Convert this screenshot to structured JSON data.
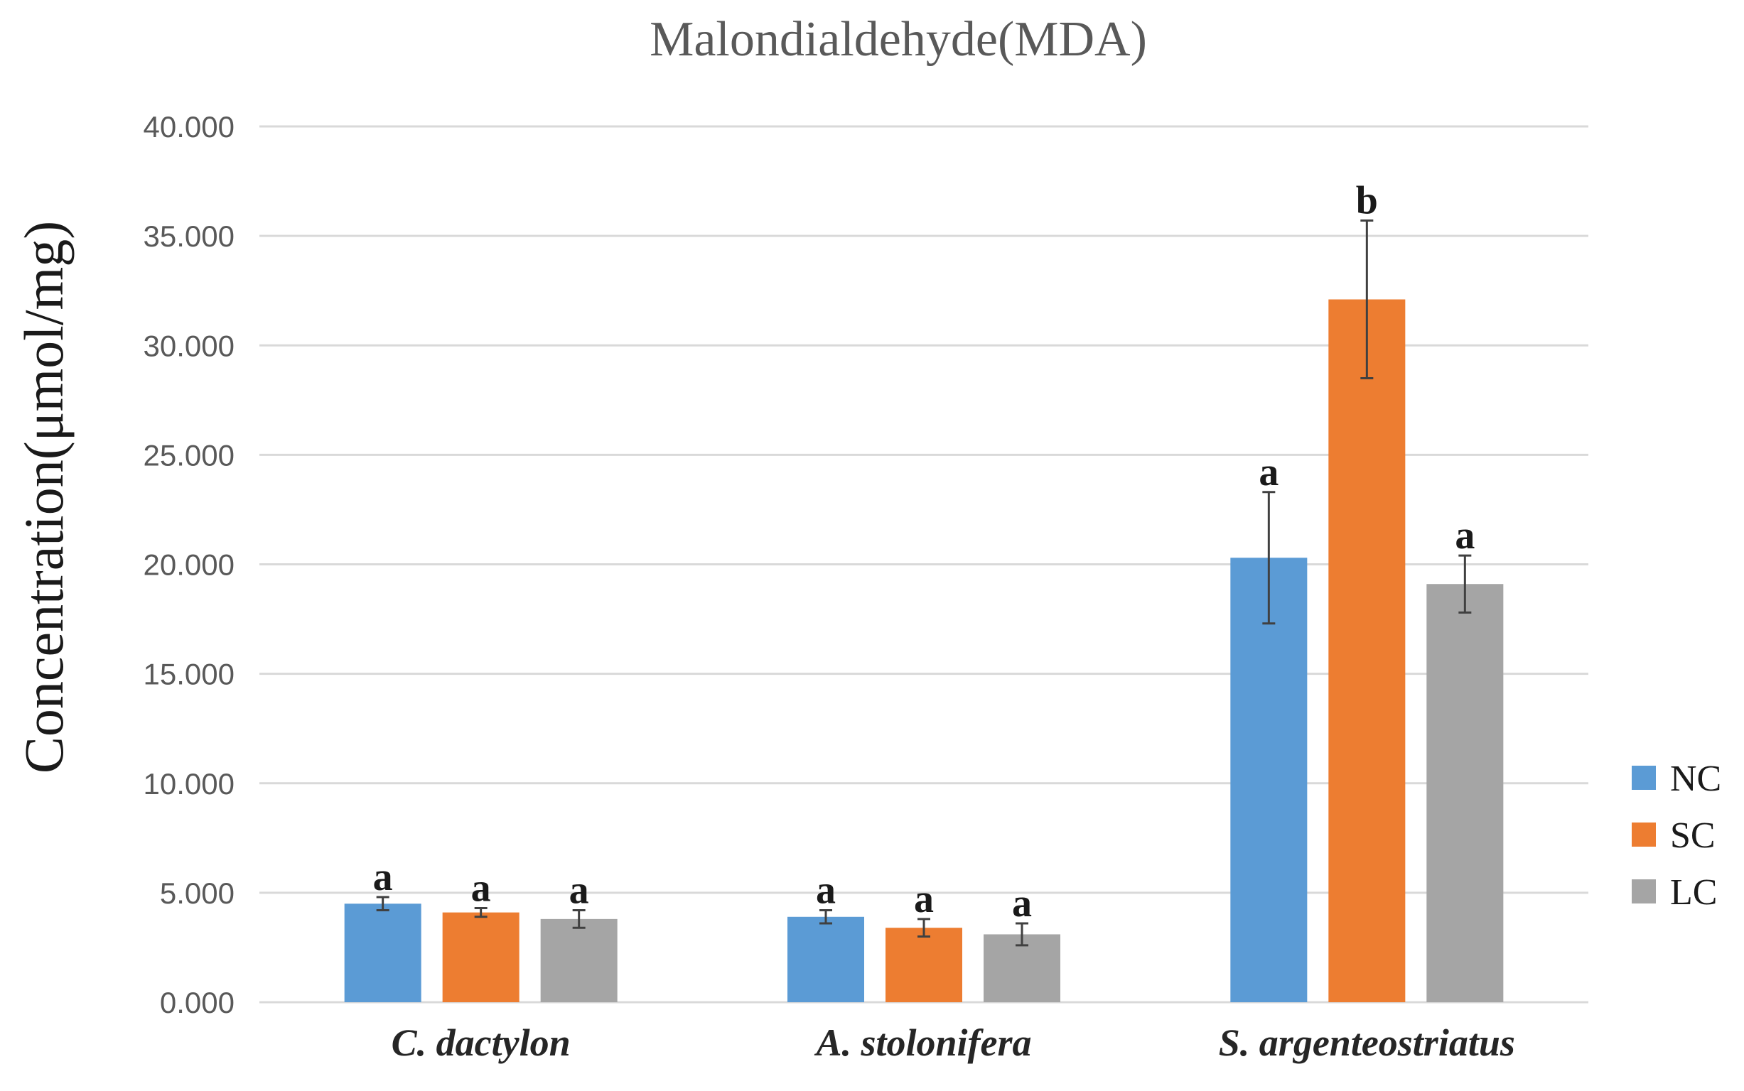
{
  "chart_data": {
    "type": "bar",
    "title": "Malondialdehyde(MDA)",
    "xlabel": "",
    "ylabel": "Concentration(μmol/mg)",
    "ylim": [
      0,
      40
    ],
    "yticks": [
      "0.000",
      "5.000",
      "10.000",
      "15.000",
      "20.000",
      "25.000",
      "30.000",
      "35.000",
      "40.000"
    ],
    "grid": true,
    "legend_position": "right",
    "categories": [
      "C. dactylon",
      "A. stolonifera",
      "S. argenteostriatus"
    ],
    "series": [
      {
        "name": "NC",
        "color": "#5b9bd5",
        "values": [
          4.5,
          3.9,
          20.3
        ],
        "errors": [
          0.3,
          0.3,
          3.0
        ],
        "labels": [
          "a",
          "a",
          "a"
        ]
      },
      {
        "name": "SC",
        "color": "#ed7d31",
        "values": [
          4.1,
          3.4,
          32.1
        ],
        "errors": [
          0.2,
          0.4,
          3.6
        ],
        "labels": [
          "a",
          "a",
          "b"
        ]
      },
      {
        "name": "LC",
        "color": "#a5a5a5",
        "values": [
          3.8,
          3.1,
          19.1
        ],
        "errors": [
          0.4,
          0.5,
          1.3
        ],
        "labels": [
          "a",
          "a",
          "a"
        ]
      }
    ]
  }
}
